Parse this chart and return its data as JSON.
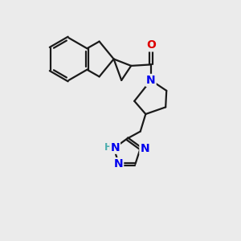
{
  "background_color": "#ebebeb",
  "bond_color": "#1a1a1a",
  "atom_colors": {
    "N": "#0000ee",
    "O": "#dd0000",
    "H": "#4aadad"
  },
  "line_width": 1.6,
  "figsize": [
    3.0,
    3.0
  ],
  "dpi": 100
}
